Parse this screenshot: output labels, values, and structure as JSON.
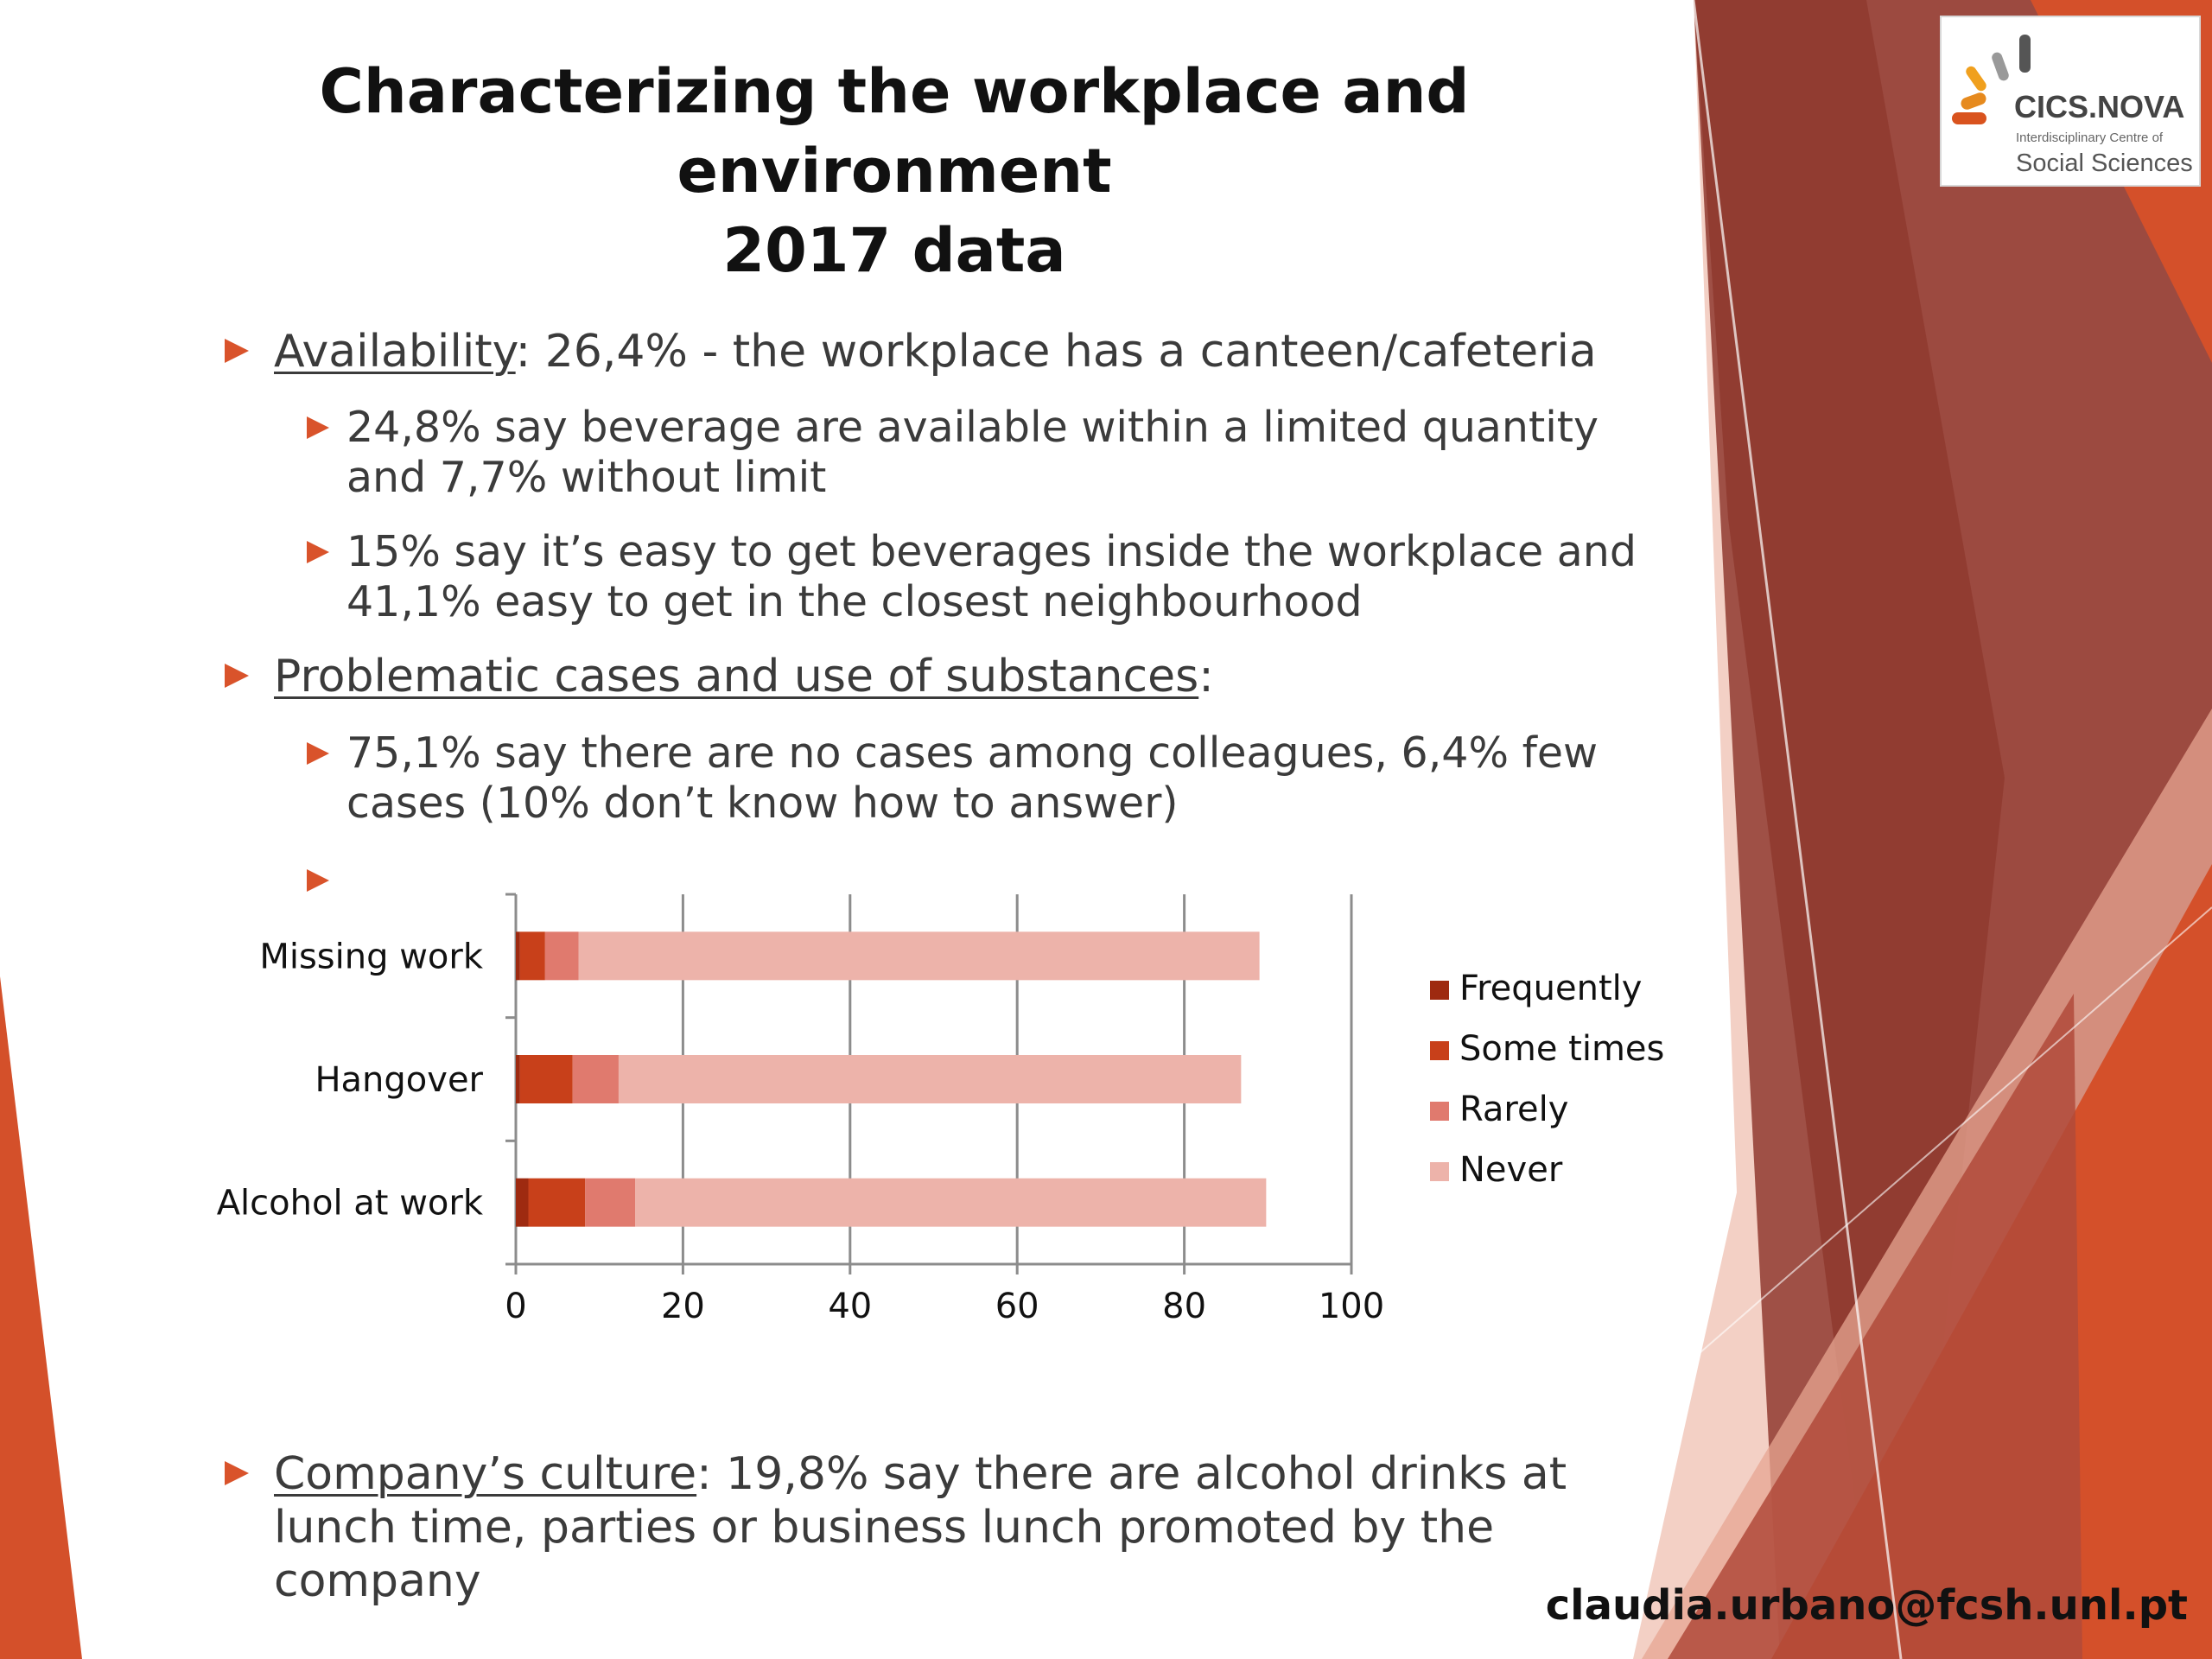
{
  "title": {
    "line1": "Characterizing the workplace and environment",
    "line2": "2017 data"
  },
  "bullets": {
    "availability": {
      "keyword": "Availability",
      "colon": ":",
      "text": " 26,4% - the workplace has a canteen/cafeteria"
    },
    "beverage_limit": "24,8% say beverage are available within a limited quantity and 7,7% without limit",
    "beverage_easy": "15% say it’s easy to get beverages inside the workplace and 41,1% easy to get in the closest neighbourhood",
    "problematic": {
      "keyword": "Problematic cases and use of substances",
      "colon": ":"
    },
    "cases": "75,1% say there are no cases among colleagues, 6,4% few cases (10% don’t know how to answer)",
    "culture": {
      "keyword": "Company’s culture",
      "colon": ":",
      "text": " 19,8% say there are alcohol drinks at lunch time, parties or business lunch promoted by the company"
    }
  },
  "chart_data": {
    "type": "bar",
    "orientation": "horizontal",
    "stacked": true,
    "categories": [
      "Missing work",
      "Hangover",
      "Alcohol at work"
    ],
    "series": [
      {
        "name": "Frequently",
        "color": "#9e2a10",
        "values": [
          0.5,
          0.5,
          1.5
        ]
      },
      {
        "name": "Some times",
        "color": "#c8401a",
        "values": [
          3.0,
          6.3,
          6.8
        ]
      },
      {
        "name": "Rarely",
        "color": "#e07a6e",
        "values": [
          4.0,
          5.5,
          6.0
        ]
      },
      {
        "name": "Never",
        "color": "#edb3aa",
        "values": [
          81.5,
          74.5,
          75.5
        ]
      }
    ],
    "xticks": [
      "0",
      "20",
      "40",
      "60",
      "80",
      "100"
    ],
    "xlim": [
      0,
      100
    ],
    "grid": true,
    "legend_position": "right"
  },
  "footer": {
    "email": "claudia.urbano@fcsh.unl.pt"
  },
  "logo": {
    "name": "CICS.NOVA",
    "subtitle": "Interdisciplinary Centre of",
    "tagline": "Social Sciences"
  },
  "colors": {
    "accent": "#d9532b",
    "dark_brown": "#8f3a2f",
    "orange": "#d4502a"
  }
}
